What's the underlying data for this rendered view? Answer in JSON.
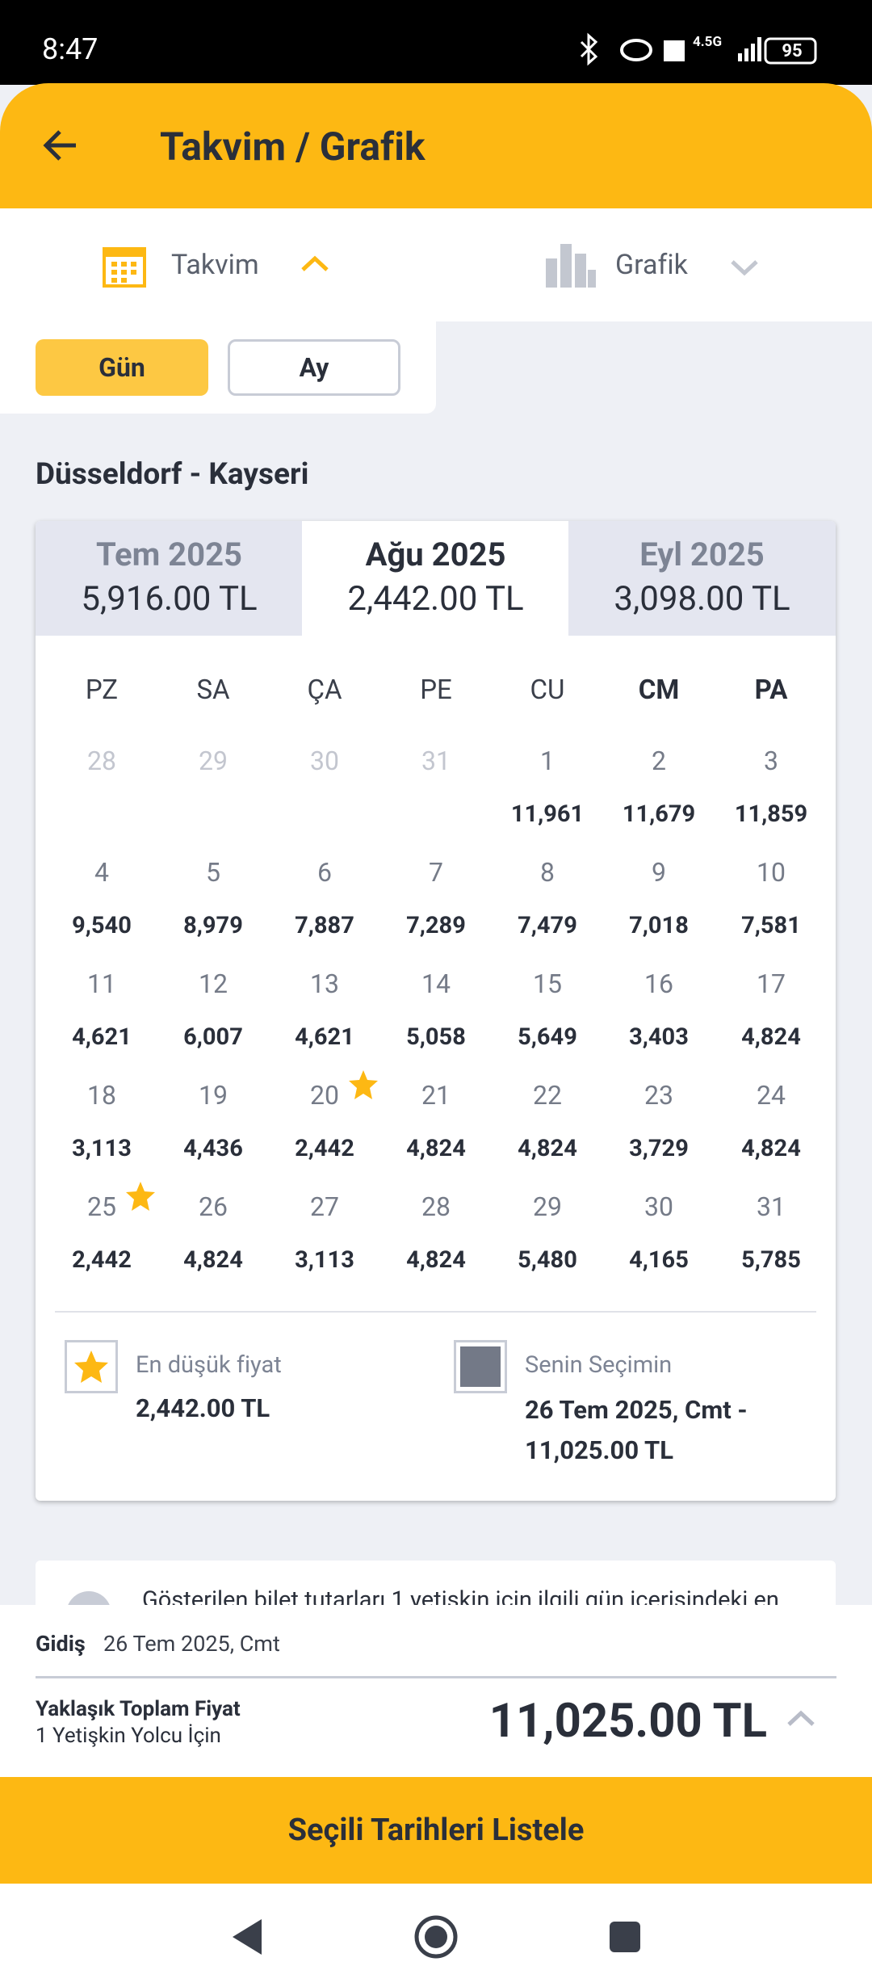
{
  "status_bar": {
    "time": "8:47",
    "network": "4.5G",
    "battery": "95"
  },
  "header": {
    "title": "Takvim / Grafik"
  },
  "tabs": [
    {
      "label": "Takvim"
    },
    {
      "label": "Grafik"
    }
  ],
  "toggle": [
    "Gün",
    "Ay"
  ],
  "route": "Düsseldorf - Kayseri",
  "months": [
    {
      "name": "Tem 2025",
      "price": "5,916.00 TL"
    },
    {
      "name": "Ağu 2025",
      "price": "2,442.00 TL",
      "active": true
    },
    {
      "name": "Eyl 2025",
      "price": "3,098.00 TL"
    }
  ],
  "weekdays": [
    "PZ",
    "SA",
    "ÇA",
    "PE",
    "CU",
    "CM",
    "PA"
  ],
  "leading_days": [
    28,
    29,
    30,
    31
  ],
  "days": [
    {
      "day": 1,
      "price": "11,961"
    },
    {
      "day": 2,
      "price": "11,679"
    },
    {
      "day": 3,
      "price": "11,859"
    },
    {
      "day": 4,
      "price": "9,540"
    },
    {
      "day": 5,
      "price": "8,979"
    },
    {
      "day": 6,
      "price": "7,887"
    },
    {
      "day": 7,
      "price": "7,289"
    },
    {
      "day": 8,
      "price": "7,479"
    },
    {
      "day": 9,
      "price": "7,018"
    },
    {
      "day": 10,
      "price": "7,581"
    },
    {
      "day": 11,
      "price": "4,621"
    },
    {
      "day": 12,
      "price": "6,007"
    },
    {
      "day": 13,
      "price": "4,621"
    },
    {
      "day": 14,
      "price": "5,058"
    },
    {
      "day": 15,
      "price": "5,649"
    },
    {
      "day": 16,
      "price": "3,403"
    },
    {
      "day": 17,
      "price": "4,824"
    },
    {
      "day": 18,
      "price": "3,113"
    },
    {
      "day": 19,
      "price": "4,436"
    },
    {
      "day": 20,
      "price": "2,442",
      "lowest": true
    },
    {
      "day": 21,
      "price": "4,824"
    },
    {
      "day": 22,
      "price": "4,824"
    },
    {
      "day": 23,
      "price": "3,729"
    },
    {
      "day": 24,
      "price": "4,824"
    },
    {
      "day": 25,
      "price": "2,442",
      "lowest": true
    },
    {
      "day": 26,
      "price": "4,824"
    },
    {
      "day": 27,
      "price": "3,113"
    },
    {
      "day": 28,
      "price": "4,824"
    },
    {
      "day": 29,
      "price": "5,480"
    },
    {
      "day": 30,
      "price": "4,165"
    },
    {
      "day": 31,
      "price": "5,785"
    }
  ],
  "legend": {
    "lowest_label": "En düşük fiyat",
    "lowest_value": "2,442.00 TL",
    "selection_label": "Senin Seçimin",
    "selection_value": "26 Tem 2025, Cmt - 11,025.00 TL"
  },
  "info": "Gösterilen bilet tutarları 1 yetişkin için ilgili gün içerisindeki en",
  "footer": {
    "departure_label": "Gidiş",
    "departure_value": "26 Tem 2025, Cmt",
    "total_label": "Yaklaşık Toplam Fiyat",
    "passengers": "1 Yetişkin Yolcu İçin",
    "total": "11,025.00 TL",
    "button": "Seçili Tarihleri Listele"
  }
}
